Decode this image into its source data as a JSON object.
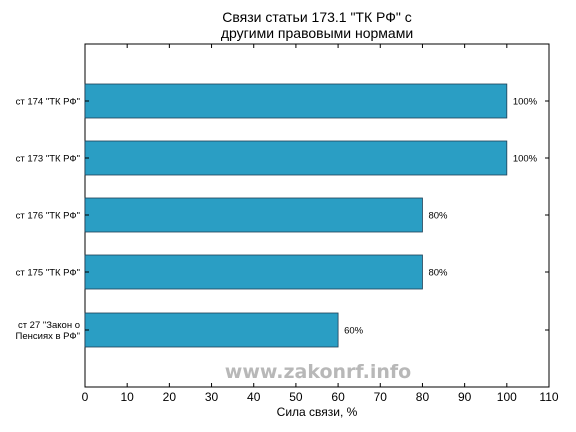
{
  "chart_data": {
    "type": "bar",
    "orientation": "horizontal",
    "title": "Связи статьи 173.1 \"ТК РФ\" с\nдругими правовыми нормами",
    "xlabel": "Сила связи, %",
    "ylabel": "",
    "categories": [
      "ст 174 \"ТК РФ\"",
      "ст 173 \"ТК РФ\"",
      "ст 176 \"ТК РФ\"",
      "ст 175 \"ТК РФ\"",
      "ст 27 \"Закон о\nПенсиях в РФ\""
    ],
    "values": [
      100,
      100,
      80,
      80,
      60
    ],
    "value_labels": [
      "100%",
      "100%",
      "80%",
      "80%",
      "60%"
    ],
    "xlim": [
      0,
      110
    ],
    "xticks": [
      0,
      10,
      20,
      30,
      40,
      50,
      60,
      70,
      80,
      90,
      100,
      110
    ],
    "bar_color": "#2a9ec4",
    "grid": false,
    "watermark": "www.zakonrf.info"
  }
}
